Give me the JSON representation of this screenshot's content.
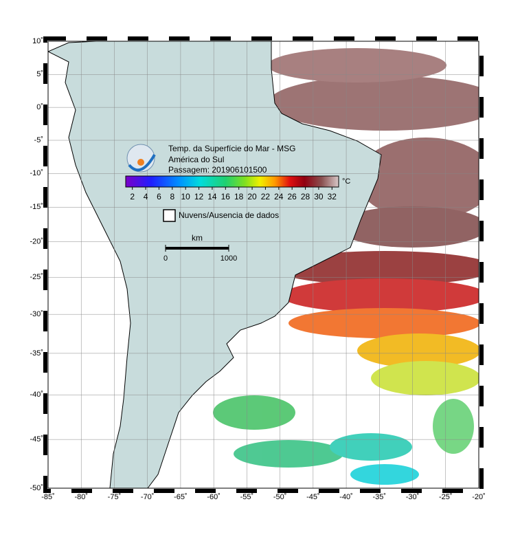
{
  "map": {
    "lonlim": [
      -85,
      -20
    ],
    "latlim": [
      -50,
      10
    ],
    "lonticks": [
      {
        "value": -85,
        "label": "-85˚"
      },
      {
        "value": -80,
        "label": "-80˚"
      },
      {
        "value": -75,
        "label": "-75˚"
      },
      {
        "value": -70,
        "label": "-70˚"
      },
      {
        "value": -65,
        "label": "-65˚"
      },
      {
        "value": -60,
        "label": "-60˚"
      },
      {
        "value": -55,
        "label": "-55˚"
      },
      {
        "value": -50,
        "label": "-50˚"
      },
      {
        "value": -45,
        "label": "-45˚"
      },
      {
        "value": -40,
        "label": "-40˚"
      },
      {
        "value": -35,
        "label": "-35˚"
      },
      {
        "value": -30,
        "label": "-30˚"
      },
      {
        "value": -25,
        "label": "-25˚"
      },
      {
        "value": -20,
        "label": "-20˚"
      }
    ],
    "latticks": [
      {
        "value": 10,
        "label": "10˚"
      },
      {
        "value": 5,
        "label": "5˚"
      },
      {
        "value": 0,
        "label": "0˚"
      },
      {
        "value": -5,
        "label": "-5˚"
      },
      {
        "value": -10,
        "label": "-10˚"
      },
      {
        "value": -15,
        "label": "-15˚"
      },
      {
        "value": -20,
        "label": "-20˚"
      },
      {
        "value": -25,
        "label": "-25˚"
      },
      {
        "value": -30,
        "label": "-30˚"
      },
      {
        "value": -35,
        "label": "-35˚"
      },
      {
        "value": -40,
        "label": "-40˚"
      },
      {
        "value": -45,
        "label": "-45˚"
      },
      {
        "value": -50,
        "label": "-50˚"
      }
    ]
  },
  "legend": {
    "title": [
      "Temp. da Superfície do Mar - MSG",
      "América do Sul",
      "Passagem: 201906101500"
    ],
    "no_data": "Nuvens/Ausencia de dados"
  },
  "colorbar": {
    "lim": [
      1,
      33
    ],
    "ticks": [
      2,
      4,
      6,
      8,
      10,
      12,
      14,
      16,
      18,
      20,
      22,
      24,
      26,
      28,
      30,
      32
    ],
    "unit": "°C"
  },
  "scale_bar": {
    "unit": "km",
    "ticks": [
      0,
      1000
    ]
  }
}
